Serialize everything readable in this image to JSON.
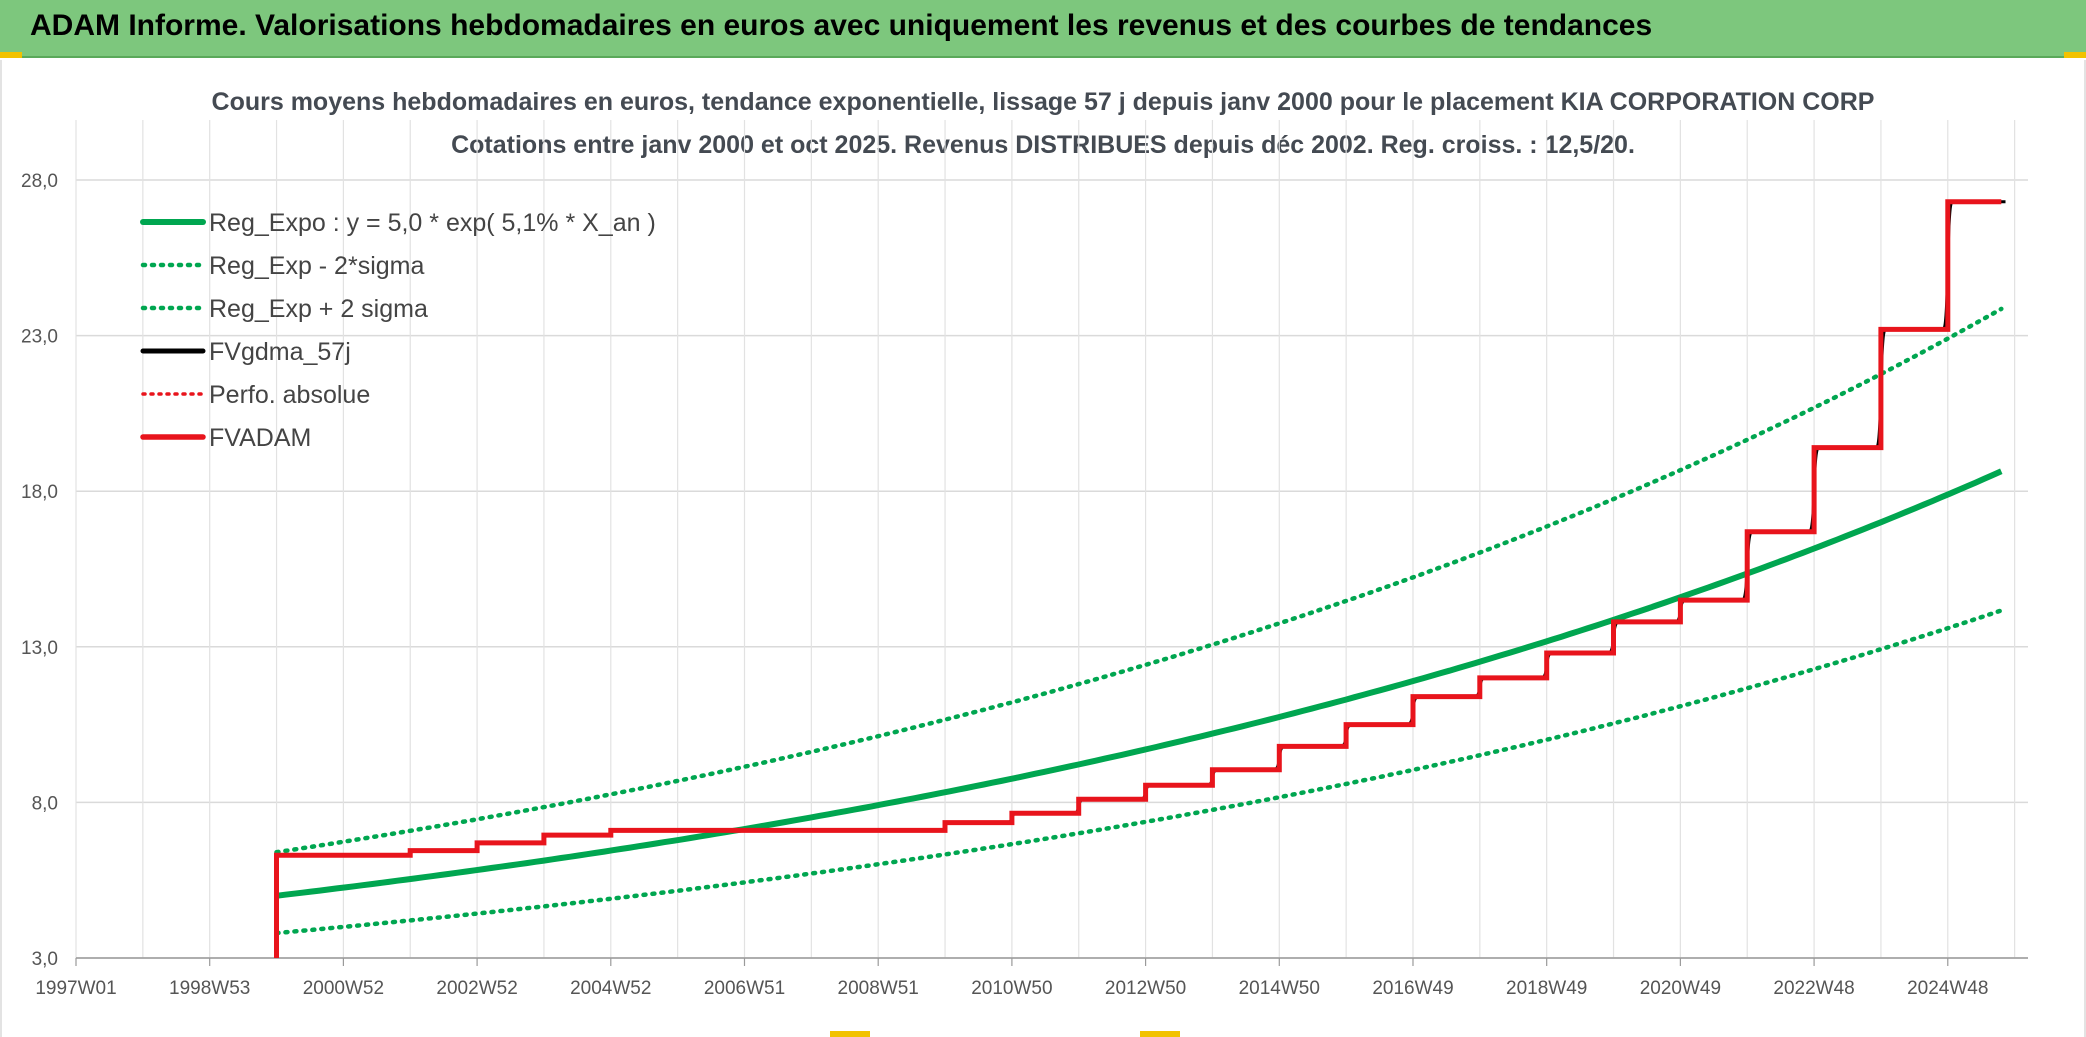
{
  "banner": {
    "title": "ADAM Informe. Valorisations hebdomadaires en euros avec uniquement les revenus et des courbes de tendances"
  },
  "colors": {
    "banner_bg": "#7dc77d",
    "regression": "#00a650",
    "smoothed": "#000000",
    "adam": "#e8141c",
    "accent_corner": "#f2c200"
  },
  "chart_data": {
    "type": "line",
    "title": "Cours moyens hebdomadaires en euros, tendance exponentielle, lissage 57 j depuis janv 2000 pour le placement KIA CORPORATION CORP",
    "subtitle": "Cotations entre janv 2000 et oct 2025. Revenus DISTRIBUES depuis déc 2002. Reg. croiss. : 12,5/20.",
    "xlabel": "",
    "ylabel": "",
    "ylim": [
      3,
      28
    ],
    "xlim": [
      1997.0,
      2026.2
    ],
    "y_ticks": [
      "3,0",
      "8,0",
      "13,0",
      "18,0",
      "23,0",
      "28,0"
    ],
    "y_tick_values": [
      3,
      8,
      13,
      18,
      23,
      28
    ],
    "x_ticks": [
      "1997W01",
      "1998W53",
      "2000W52",
      "2002W52",
      "2004W52",
      "2006W51",
      "2008W51",
      "2010W50",
      "2012W50",
      "2014W50",
      "2016W49",
      "2018W49",
      "2020W49",
      "2022W48",
      "2024W48"
    ],
    "x_tick_values": [
      1997.0,
      1999.0,
      2001.0,
      2003.0,
      2005.0,
      2007.0,
      2009.0,
      2011.0,
      2013.0,
      2015.0,
      2017.0,
      2019.0,
      2021.0,
      2023.0,
      2025.0
    ],
    "grid": true,
    "legend_position": "top-left",
    "series": [
      {
        "name": "Reg_Expo : y = 5,0 * exp( 5,1% *  X_an )",
        "style": "solid-green",
        "x": [
          2000.0,
          2025.8
        ],
        "model": {
          "a": 5.0,
          "b": 0.051,
          "offset": 0
        }
      },
      {
        "name": "Reg_Exp - 2*sigma",
        "style": "dotted-green",
        "x": [
          2000.0,
          2025.8
        ],
        "model": {
          "a": 3.8,
          "b": 0.051,
          "offset": 0
        }
      },
      {
        "name": "Reg_Exp + 2 sigma",
        "style": "dotted-green",
        "x": [
          2000.0,
          2025.8
        ],
        "model": {
          "a": 6.4,
          "b": 0.051,
          "offset": 0
        }
      },
      {
        "name": "FVgdma_57j",
        "style": "solid-black"
      },
      {
        "name": "Perfo. absolue",
        "style": "dotted-red"
      },
      {
        "name": "FVADAM",
        "style": "solid-red",
        "steps_x": [
          2000.0,
          2002.0,
          2003.0,
          2004.0,
          2005.0,
          2006.0,
          2007.0,
          2008.0,
          2009.0,
          2010.0,
          2011.0,
          2012.0,
          2013.0,
          2014.0,
          2015.0,
          2016.0,
          2017.0,
          2018.0,
          2019.0,
          2020.0,
          2021.0,
          2022.0,
          2023.0,
          2024.0,
          2025.0,
          2025.8
        ],
        "steps_y": [
          6.3,
          6.45,
          6.7,
          6.95,
          7.1,
          7.1,
          7.1,
          7.1,
          7.1,
          7.35,
          7.65,
          8.1,
          8.55,
          9.05,
          9.8,
          10.5,
          11.4,
          12.0,
          12.8,
          13.8,
          14.5,
          16.7,
          19.4,
          23.2,
          27.3,
          27.3
        ],
        "start_y": 3.0
      }
    ]
  }
}
